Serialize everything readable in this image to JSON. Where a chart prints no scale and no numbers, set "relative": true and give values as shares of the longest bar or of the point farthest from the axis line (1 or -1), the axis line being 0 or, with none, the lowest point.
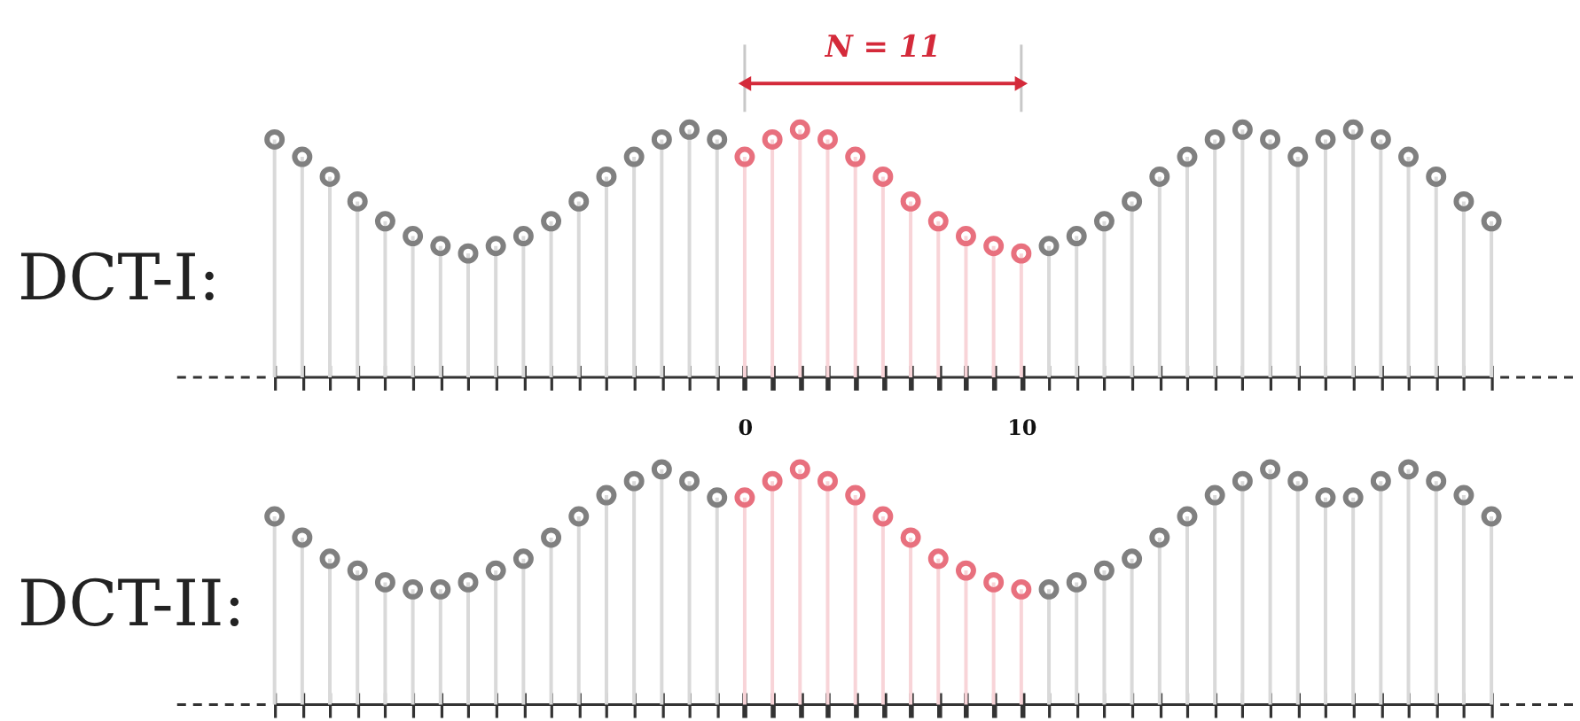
{
  "chart_data": [
    {
      "type": "lollipop",
      "title": "DCT-I:",
      "relative": true,
      "marker": "circle",
      "tick_labels": "x",
      "xlim": [
        -17,
        27
      ],
      "xticks": [
        {
          "value": -17,
          "label": null
        },
        {
          "value": -16,
          "label": null
        },
        {
          "value": -15,
          "label": null
        },
        {
          "value": -14,
          "label": null
        },
        {
          "value": -13,
          "label": null
        },
        {
          "value": -12,
          "label": null
        },
        {
          "value": -11,
          "label": null
        },
        {
          "value": -10,
          "label": null
        },
        {
          "value": -9,
          "label": null
        },
        {
          "value": -8,
          "label": null
        },
        {
          "value": -7,
          "label": null
        },
        {
          "value": -6,
          "label": null
        },
        {
          "value": -5,
          "label": null
        },
        {
          "value": -4,
          "label": null
        },
        {
          "value": -3,
          "label": null
        },
        {
          "value": -2,
          "label": null
        },
        {
          "value": -1,
          "label": null
        },
        0,
        {
          "value": 1,
          "label": null
        },
        {
          "value": 2,
          "label": null
        },
        {
          "value": 3,
          "label": null
        },
        {
          "value": 4,
          "label": null
        },
        {
          "value": 5,
          "label": null
        },
        {
          "value": 6,
          "label": null
        },
        {
          "value": 7,
          "label": null
        },
        {
          "value": 8,
          "label": null
        },
        {
          "value": 9,
          "label": null
        },
        10,
        {
          "value": 11,
          "label": null
        },
        {
          "value": 12,
          "label": null
        },
        {
          "value": 13,
          "label": null
        },
        {
          "value": 14,
          "label": null
        },
        {
          "value": 15,
          "label": null
        },
        {
          "value": 16,
          "label": null
        },
        {
          "value": 17,
          "label": null
        },
        {
          "value": 18,
          "label": null
        },
        {
          "value": 19,
          "label": null
        },
        {
          "value": 20,
          "label": null
        },
        {
          "value": 21,
          "label": null
        },
        {
          "value": 22,
          "label": null
        },
        {
          "value": 23,
          "label": null
        },
        {
          "value": 24,
          "label": null
        },
        {
          "value": 25,
          "label": null
        },
        {
          "value": 26,
          "label": null
        },
        {
          "value": 27,
          "label": null
        }
      ],
      "annotations": [
        "N = 11"
      ],
      "series": [
        {
          "color": "#808080",
          "x": [
            -17,
            -16,
            -15,
            -14,
            -13,
            -12,
            -11,
            -10,
            -9,
            -8,
            -7,
            -6,
            -5,
            -4,
            -3,
            -2,
            -1,
            11,
            12,
            13,
            14,
            15,
            16,
            17,
            18,
            19,
            20,
            21,
            22,
            23,
            24,
            25,
            26,
            27
          ],
          "values": [
            0.96,
            0.89,
            0.81,
            0.71,
            0.63,
            0.57,
            0.53,
            0.5,
            0.53,
            0.57,
            0.63,
            0.71,
            0.81,
            0.89,
            0.96,
            1.0,
            0.96,
            0.53,
            0.57,
            0.63,
            0.71,
            0.81,
            0.89,
            0.96,
            1.0,
            0.96,
            0.89,
            0.96,
            1.0,
            0.96,
            0.89,
            0.81,
            0.71,
            0.63
          ]
        },
        {
          "color": "#e8707e",
          "x": [
            0,
            1,
            2,
            3,
            4,
            5,
            6,
            7,
            8,
            9,
            10
          ],
          "values": [
            0.89,
            0.96,
            1.0,
            0.96,
            0.89,
            0.81,
            0.71,
            0.63,
            0.57,
            0.53,
            0.5
          ]
        }
      ]
    },
    {
      "type": "lollipop",
      "title": "DCT-II:",
      "relative": true,
      "marker": "circle",
      "tick_labels": false,
      "xlim": [
        -17,
        27
      ],
      "xticks": [
        {
          "value": -17,
          "label": null
        },
        {
          "value": -16,
          "label": null
        },
        {
          "value": -15,
          "label": null
        },
        {
          "value": -14,
          "label": null
        },
        {
          "value": -13,
          "label": null
        },
        {
          "value": -12,
          "label": null
        },
        {
          "value": -11,
          "label": null
        },
        {
          "value": -10,
          "label": null
        },
        {
          "value": -9,
          "label": null
        },
        {
          "value": -8,
          "label": null
        },
        {
          "value": -7,
          "label": null
        },
        {
          "value": -6,
          "label": null
        },
        {
          "value": -5,
          "label": null
        },
        {
          "value": -4,
          "label": null
        },
        {
          "value": -3,
          "label": null
        },
        {
          "value": -2,
          "label": null
        },
        {
          "value": -1,
          "label": null
        },
        0,
        {
          "value": 1,
          "label": null
        },
        {
          "value": 2,
          "label": null
        },
        {
          "value": 3,
          "label": null
        },
        {
          "value": 4,
          "label": null
        },
        {
          "value": 5,
          "label": null
        },
        {
          "value": 6,
          "label": null
        },
        {
          "value": 7,
          "label": null
        },
        {
          "value": 8,
          "label": null
        },
        {
          "value": 9,
          "label": null
        },
        10,
        {
          "value": 11,
          "label": null
        },
        {
          "value": 12,
          "label": null
        },
        {
          "value": 13,
          "label": null
        },
        {
          "value": 14,
          "label": null
        },
        {
          "value": 15,
          "label": null
        },
        {
          "value": 16,
          "label": null
        },
        {
          "value": 17,
          "label": null
        },
        {
          "value": 18,
          "label": null
        },
        {
          "value": 19,
          "label": null
        },
        {
          "value": 20,
          "label": null
        },
        {
          "value": 21,
          "label": null
        },
        {
          "value": 22,
          "label": null
        },
        {
          "value": 23,
          "label": null
        },
        {
          "value": 24,
          "label": null
        },
        {
          "value": 25,
          "label": null
        },
        {
          "value": 26,
          "label": null
        },
        {
          "value": 27,
          "label": null
        }
      ],
      "series": [
        {
          "color": "#808080",
          "x": [
            -17,
            -16,
            -15,
            -14,
            -13,
            -12,
            -11,
            -10,
            -9,
            -8,
            -7,
            -6,
            -5,
            -4,
            -3,
            -2,
            -1,
            11,
            12,
            13,
            14,
            15,
            16,
            17,
            18,
            19,
            20,
            21,
            22,
            23,
            24,
            25,
            26,
            27
          ],
          "values": [
            0.8,
            0.71,
            0.62,
            0.57,
            0.52,
            0.49,
            0.49,
            0.52,
            0.57,
            0.62,
            0.71,
            0.8,
            0.89,
            0.95,
            1.0,
            0.95,
            0.88,
            0.49,
            0.52,
            0.57,
            0.62,
            0.71,
            0.8,
            0.89,
            0.95,
            1.0,
            0.95,
            0.88,
            0.88,
            0.95,
            1.0,
            0.95,
            0.89,
            0.8
          ]
        },
        {
          "color": "#e8707e",
          "x": [
            0,
            1,
            2,
            3,
            4,
            5,
            6,
            7,
            8,
            9,
            10
          ],
          "values": [
            0.88,
            0.95,
            1.0,
            0.95,
            0.89,
            0.8,
            0.71,
            0.62,
            0.57,
            0.52,
            0.49
          ]
        }
      ]
    }
  ]
}
